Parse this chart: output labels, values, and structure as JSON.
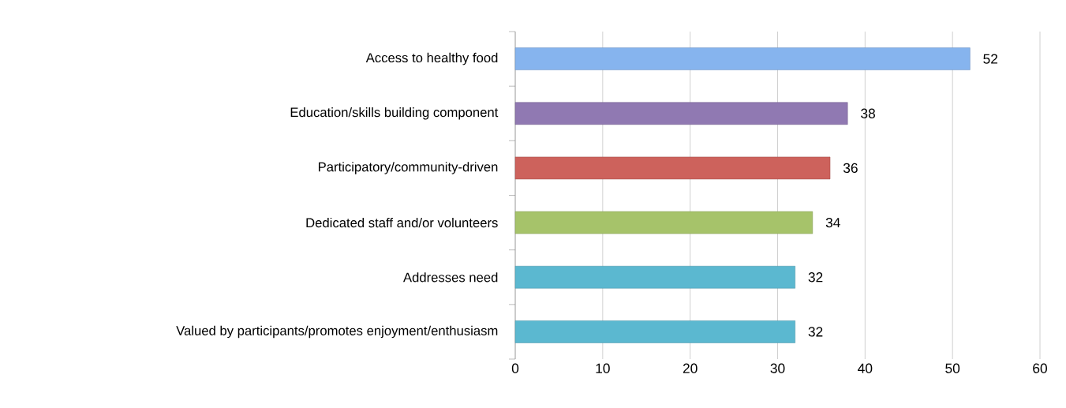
{
  "chart_data": {
    "type": "bar",
    "orientation": "horizontal",
    "categories": [
      "Access to healthy food",
      "Education/skills building component",
      "Participatory/community-driven",
      "Dedicated staff and/or volunteers",
      "Addresses need",
      "Valued by participants/promotes enjoyment/enthusiasm"
    ],
    "values": [
      52,
      38,
      36,
      34,
      32,
      32
    ],
    "colors": [
      "#86b4ee",
      "#9079b2",
      "#cd625c",
      "#a6c36a",
      "#5bb8d0",
      "#5bb8d0"
    ],
    "xlim": [
      0,
      60
    ],
    "xticks": [
      0,
      10,
      20,
      30,
      40,
      50,
      60
    ],
    "grid": "x",
    "data_labels": true
  }
}
